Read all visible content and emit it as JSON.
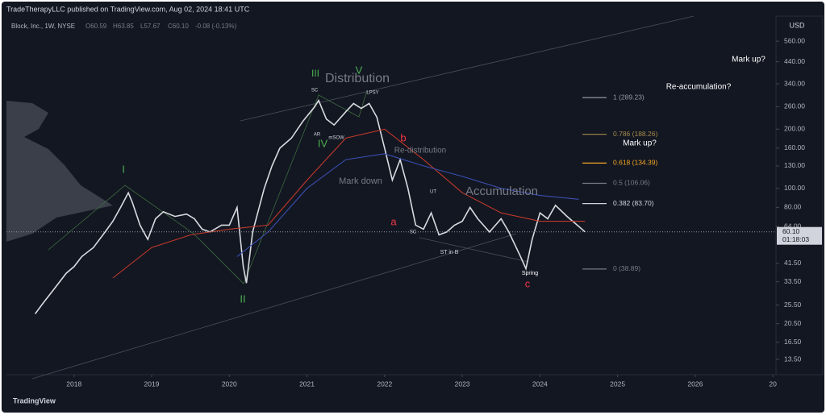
{
  "chart_data": {
    "type": "line",
    "header": "TradeTherapyLLC published on TradingView.com, Aug 02, 2024 18:41 UTC",
    "title": "Block, Inc., 1W, NYSE",
    "ohlc": [
      "O60.59",
      "H63.85",
      "L57.67",
      "C60.10",
      "-0.08 (-0.13%)"
    ],
    "currency": "USD",
    "brand": "TradingView",
    "log_scale": true,
    "grid": false,
    "xlim": [
      2017.13,
      2027.04
    ],
    "xticks": [
      2018,
      2019,
      2020,
      2021,
      2022,
      2023,
      2024,
      2025,
      2026,
      {
        "value": 2027,
        "label": "20"
      }
    ],
    "ylim": [
      11.5,
      737
    ],
    "yticks": [
      {
        "value": 560,
        "label": "560.00"
      },
      {
        "value": 440,
        "label": "440.00"
      },
      {
        "value": 340,
        "label": "340.00"
      },
      {
        "value": 260,
        "label": "260.00"
      },
      {
        "value": 200,
        "label": "200.00"
      },
      {
        "value": 160,
        "label": "160.00"
      },
      {
        "value": 130,
        "label": "130.00"
      },
      {
        "value": 100,
        "label": "100.00"
      },
      {
        "value": 80,
        "label": "80.00"
      },
      {
        "value": 64,
        "label": "64.00"
      },
      {
        "value": 41.5,
        "label": "41.50"
      },
      {
        "value": 33.5,
        "label": "33.50"
      },
      {
        "value": 25.5,
        "label": "25.50"
      },
      {
        "value": 20.5,
        "label": "20.50"
      },
      {
        "value": 16.5,
        "label": "16.50"
      },
      {
        "value": 13.5,
        "label": "13.50"
      }
    ],
    "last_price": {
      "value": 60.1,
      "label": "60.10"
    },
    "countdown": "01:18:03",
    "series": [
      {
        "color": "#d9dbe0",
        "x": [
          2017.5,
          2017.6,
          2017.75,
          2017.9,
          2018.0,
          2018.1,
          2018.25,
          2018.4,
          2018.5,
          2018.6,
          2018.7,
          2018.75,
          2018.85,
          2018.95,
          2019.05,
          2019.15,
          2019.3,
          2019.45,
          2019.55,
          2019.65,
          2019.75,
          2019.9,
          2020.0,
          2020.1,
          2020.18,
          2020.22,
          2020.3,
          2020.45,
          2020.55,
          2020.65,
          2020.8,
          2020.95,
          2021.1,
          2021.15,
          2021.25,
          2021.35,
          2021.5,
          2021.6,
          2021.7,
          2021.8,
          2021.9,
          2022.0,
          2022.1,
          2022.2,
          2022.3,
          2022.4,
          2022.5,
          2022.6,
          2022.7,
          2022.8,
          2022.9,
          2023.0,
          2023.1,
          2023.2,
          2023.35,
          2023.5,
          2023.6,
          2023.75,
          2023.82,
          2023.9,
          2024.0,
          2024.1,
          2024.2,
          2024.35,
          2024.5,
          2024.58
        ],
        "values": [
          23,
          26,
          31,
          37,
          40,
          45,
          50,
          60,
          68,
          80,
          95,
          85,
          65,
          55,
          70,
          76,
          72,
          74,
          70,
          62,
          60,
          65,
          65,
          80,
          40,
          33,
          60,
          100,
          130,
          160,
          180,
          220,
          260,
          280,
          225,
          210,
          245,
          270,
          255,
          270,
          230,
          160,
          110,
          140,
          100,
          65,
          62,
          75,
          58,
          60,
          65,
          68,
          80,
          70,
          60,
          70,
          60,
          45,
          39,
          55,
          75,
          70,
          82,
          72,
          64,
          60.1
        ]
      },
      {
        "color": "#c0392b",
        "x": [
          2018.5,
          2019.0,
          2019.5,
          2020.0,
          2020.5,
          2021.0,
          2021.5,
          2022.0,
          2022.5,
          2023.0,
          2023.5,
          2024.0,
          2024.58
        ],
        "values": [
          35,
          50,
          58,
          62,
          65,
          110,
          180,
          200,
          140,
          95,
          75,
          68,
          68
        ]
      },
      {
        "color": "#3a4fb0",
        "x": [
          2020.1,
          2020.5,
          2021.0,
          2021.5,
          2022.0,
          2022.5,
          2023.0,
          2023.5,
          2024.0,
          2024.5
        ],
        "values": [
          45,
          60,
          100,
          140,
          150,
          130,
          115,
          100,
          92,
          88
        ]
      }
    ],
    "fib_levels": [
      {
        "label": "1 (289.23)",
        "value": 289.23,
        "color": "#9598a1"
      },
      {
        "label": "0.786 (188.26)",
        "value": 188.26,
        "color": "#a68a4a"
      },
      {
        "label": "0.618 (134.39)",
        "value": 134.39,
        "color": "#f5a623"
      },
      {
        "label": "0.5 (106.06)",
        "value": 106.06,
        "color": "#787b86"
      },
      {
        "label": "0.382 (83.70)",
        "value": 83.7,
        "color": "#d1d4dc"
      },
      {
        "label": "0 (38.89)",
        "value": 38.89,
        "color": "#787b86"
      }
    ],
    "annotations": [
      "Distribution",
      "Accumulation",
      "Mark down",
      "Re-distribution",
      "Mark up?",
      "Re-accumulation?",
      "Mark up?",
      "I",
      "II",
      "III",
      "IV",
      "V",
      "a",
      "b",
      "c",
      "Spring",
      "ST in B",
      "SC",
      "LPSY",
      "mSOW",
      "AR",
      "SC",
      "UT"
    ]
  }
}
